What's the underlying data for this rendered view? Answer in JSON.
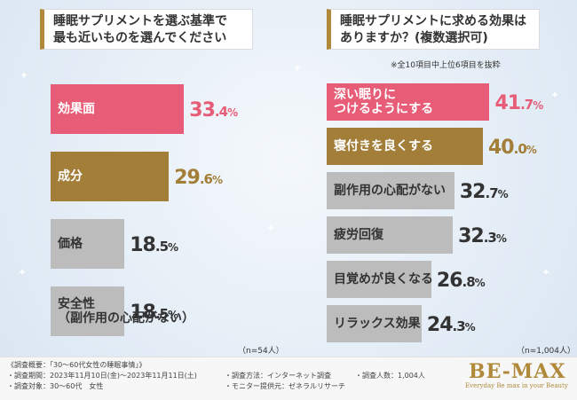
{
  "chart_data": [
    {
      "type": "bar",
      "orientation": "horizontal",
      "title_lines": [
        "睡眠サプリメントを選ぶ基準で",
        "最も近いものを選んでください"
      ],
      "categories": [
        "効果面",
        "成分",
        "価格",
        "安全性\n（副作用の心配がない）"
      ],
      "values": [
        33.4,
        29.6,
        18.5,
        18.5
      ],
      "value_labels": [
        {
          "int": "33",
          "dec": ".4",
          "unit": "%"
        },
        {
          "int": "29",
          "dec": ".6",
          "unit": "%"
        },
        {
          "int": "18",
          "dec": ".5",
          "unit": "%"
        },
        {
          "int": "18",
          "dec": ".5",
          "unit": "%"
        }
      ],
      "bar_colors": [
        "#e75d78",
        "#a27e38",
        "#bcbcbc",
        "#bcbcbc"
      ],
      "value_colors": [
        "#e75d78",
        "#a27e38",
        "#333333",
        "#333333"
      ],
      "label_colors": [
        "#ffffff",
        "#ffffff",
        "#333333",
        "#333333"
      ],
      "n_note": "（n=54人）"
    },
    {
      "type": "bar",
      "orientation": "horizontal",
      "title_lines": [
        "睡眠サプリメントに求める効果は",
        "ありますか？(複数選択可)"
      ],
      "subnote": "※全10項目中上位6項目を抜粋",
      "categories": [
        "深い眠りに\nつけるようにする",
        "寝付きを良くする",
        "副作用の心配がない",
        "疲労回復",
        "目覚めが良くなる",
        "リラックス効果"
      ],
      "values": [
        41.7,
        40.0,
        32.7,
        32.3,
        26.8,
        24.3
      ],
      "value_labels": [
        {
          "int": "41",
          "dec": ".7",
          "unit": "%"
        },
        {
          "int": "40",
          "dec": ".0",
          "unit": "%"
        },
        {
          "int": "32",
          "dec": ".7",
          "unit": "%"
        },
        {
          "int": "32",
          "dec": ".3",
          "unit": "%"
        },
        {
          "int": "26",
          "dec": ".8",
          "unit": "%"
        },
        {
          "int": "24",
          "dec": ".3",
          "unit": "%"
        }
      ],
      "bar_colors": [
        "#e75d78",
        "#a27e38",
        "#bcbcbc",
        "#bcbcbc",
        "#bcbcbc",
        "#bcbcbc"
      ],
      "value_colors": [
        "#e75d78",
        "#a27e38",
        "#333333",
        "#333333",
        "#333333",
        "#333333"
      ],
      "label_colors": [
        "#ffffff",
        "#ffffff",
        "#333333",
        "#333333",
        "#333333",
        "#333333"
      ],
      "n_note": "（n=1,004人）"
    }
  ],
  "footer": {
    "lines": [
      "《調査概要：「30～60代女性の睡眠事情」》",
      "・調査期間：2023年11月10日(金)～2023年11月11日(土)",
      "・調査方法：インターネット調査",
      "・調査人数：1,004人",
      "・調査対象：30～60代　女性",
      "・モニター提供元：ゼネラルリサーチ"
    ],
    "logo": "BE-MAX",
    "logo_tagline": "Everyday Be max in your Beauty"
  },
  "accent_color": "#b08a3a"
}
